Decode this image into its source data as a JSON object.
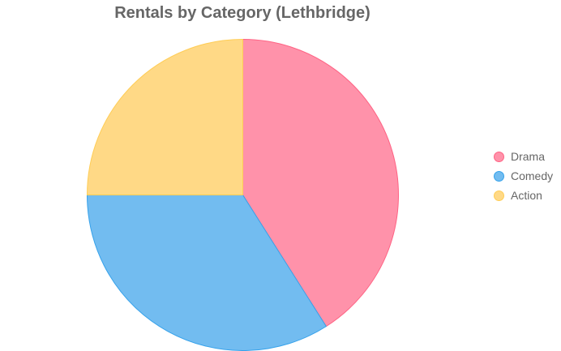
{
  "chart_data": {
    "type": "pie",
    "title": "Rentals by Category (Lethbridge)",
    "categories": [
      "Drama",
      "Comedy",
      "Action"
    ],
    "values": [
      41,
      34,
      25
    ],
    "colors": [
      "#ff92aa",
      "#72bcf0",
      "#ffd986"
    ],
    "border_colors": [
      "#ff6384",
      "#36a2eb",
      "#ffcd56"
    ],
    "legend_position": "right"
  }
}
